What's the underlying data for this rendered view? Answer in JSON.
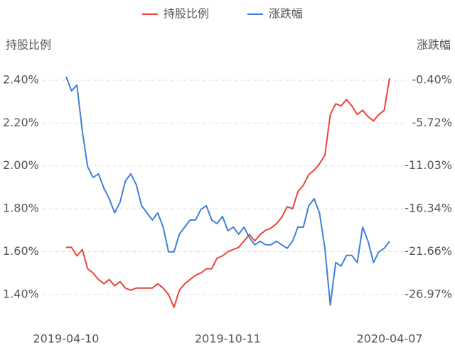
{
  "chart_data": {
    "type": "line",
    "ylabel": "持股比例",
    "y2label": "涨跌幅",
    "categories": [
      "2019-04-10",
      null,
      null,
      null,
      null,
      null,
      null,
      null,
      null,
      null,
      null,
      null,
      null,
      null,
      null,
      null,
      null,
      null,
      null,
      null,
      null,
      null,
      null,
      null,
      null,
      null,
      null,
      null,
      null,
      null,
      "2019-10-11",
      null,
      null,
      null,
      null,
      null,
      null,
      null,
      null,
      null,
      null,
      null,
      null,
      null,
      null,
      null,
      null,
      null,
      null,
      null,
      null,
      null,
      null,
      null,
      null,
      null,
      null,
      null,
      null,
      null,
      "2020-04-07"
    ],
    "series": [
      {
        "name": "持股比例",
        "color": "#e8453c",
        "values": [
          1.62,
          1.62,
          1.58,
          1.61,
          1.52,
          1.5,
          1.47,
          1.45,
          1.47,
          1.44,
          1.46,
          1.43,
          1.42,
          1.43,
          1.43,
          1.43,
          1.43,
          1.45,
          1.43,
          1.4,
          1.34,
          1.42,
          1.45,
          1.47,
          1.49,
          1.5,
          1.52,
          1.52,
          1.57,
          1.58,
          1.6,
          1.61,
          1.62,
          1.65,
          1.68,
          1.65,
          1.68,
          1.7,
          1.71,
          1.73,
          1.76,
          1.81,
          1.8,
          1.88,
          1.91,
          1.96,
          1.98,
          2.01,
          2.05,
          2.24,
          2.29,
          2.28,
          2.31,
          2.28,
          2.24,
          2.26,
          2.23,
          2.21,
          2.24,
          2.26,
          2.41
        ]
      },
      {
        "name": "涨跌幅",
        "color": "#3f7fd9",
        "axis": "y2",
        "values": [
          0.04,
          -1.72,
          -1.02,
          -6.73,
          -11.13,
          -12.45,
          -12.01,
          -13.77,
          -15.09,
          -16.85,
          -15.53,
          -12.89,
          -12.01,
          -13.33,
          -15.97,
          -16.85,
          -17.73,
          -16.85,
          -18.61,
          -21.69,
          -21.69,
          -19.49,
          -18.61,
          -17.73,
          -17.73,
          -16.41,
          -15.97,
          -17.73,
          -18.17,
          -17.29,
          -19.05,
          -18.61,
          -19.49,
          -18.61,
          -19.93,
          -20.81,
          -20.37,
          -20.81,
          -20.81,
          -20.37,
          -20.81,
          -21.25,
          -20.37,
          -18.61,
          -18.61,
          -15.97,
          -15.09,
          -16.85,
          -21.25,
          -28.29,
          -23.01,
          -23.45,
          -22.13,
          -22.13,
          -23.01,
          -18.61,
          -20.37,
          -23.01,
          -21.69,
          -21.25,
          -20.37
        ]
      }
    ],
    "ylim": [
      1.3,
      2.4
    ],
    "yticks": [
      {
        "value": 1.4,
        "label": "1.40%"
      },
      {
        "value": 1.6,
        "label": "1.60%"
      },
      {
        "value": 1.8,
        "label": "1.80%"
      },
      {
        "value": 2.0,
        "label": "2.00%"
      },
      {
        "value": 2.2,
        "label": "2.20%"
      },
      {
        "value": 2.4,
        "label": "2.40%"
      }
    ],
    "y2lim": [
      -29.627,
      -0.4
    ],
    "y2ticks": [
      {
        "value": -26.97,
        "label": "-26.97%"
      },
      {
        "value": -21.66,
        "label": "-21.66%"
      },
      {
        "value": -16.34,
        "label": "-16.34%"
      },
      {
        "value": -11.03,
        "label": "-11.03%"
      },
      {
        "value": -5.72,
        "label": "-5.72%"
      },
      {
        "value": -0.4,
        "label": "-0.40%"
      }
    ],
    "grid": true
  }
}
